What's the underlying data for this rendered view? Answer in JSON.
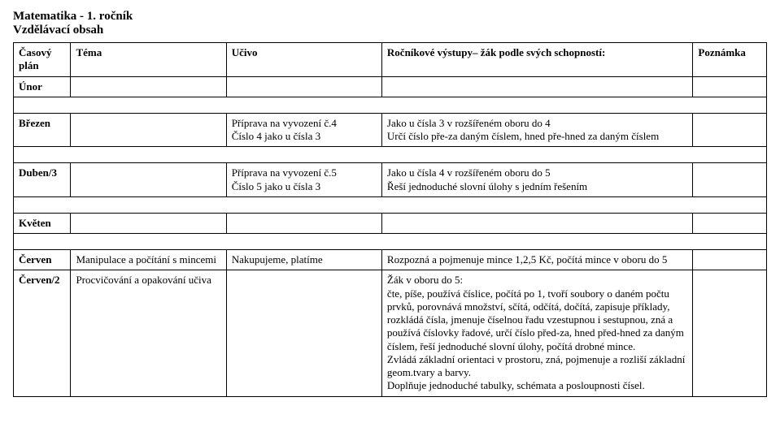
{
  "header": {
    "title": "Matematika  - 1. ročník",
    "subtitle": "Vzdělávací obsah"
  },
  "columns": {
    "plan": "Časový plán",
    "tema": "Téma",
    "ucivo": "Učivo",
    "vystupy": "Ročníkové výstupy– žák podle svých schopností:",
    "poznamka": "Poznámka"
  },
  "rows": {
    "unor": {
      "month": "Únor"
    },
    "brezen": {
      "month": "Březen",
      "ucivo": "Příprava na vyvození č.4\nČíslo 4 jako u čísla 3",
      "vystupy": "Jako u čísla 3 v rozšířeném oboru do 4\nUrčí číslo pře-za daným číslem, hned pře-hned za daným číslem"
    },
    "duben3": {
      "month": "Duben/3",
      "ucivo": "Příprava na vyvození č.5\nČíslo 5 jako u čísla 3",
      "vystupy": "Jako u čísla 4 v rozšířeném oboru do 5\nŘeší jednoduché slovní úlohy s jedním řešením"
    },
    "kveten": {
      "month": "Květen"
    },
    "cerven": {
      "month": "Červen",
      "tema": "Manipulace a počítání s mincemi",
      "ucivo": "Nakupujeme, platíme",
      "vystupy": "Rozpozná a pojmenuje mince 1,2,5 Kč, počítá mince v oboru do 5"
    },
    "cerven2": {
      "month": "Červen/2",
      "tema": "Procvičování a opakování učiva",
      "vystupy": "Žák v oboru do 5:\nčte, píše, používá číslice, počítá po 1, tvoří soubory o daném počtu prvků, porovnává množství, sčítá, odčítá, dočítá, zapisuje příklady, rozkládá čísla, jmenuje číselnou řadu vzestupnou i sestupnou, zná a používá číslovky řadové, určí číslo před-za, hned před-hned za daným číslem, řeší jednoduché slovní úlohy, počítá drobné mince.\nZvládá základní orientaci v prostoru, zná, pojmenuje a rozliší základní geom.tvary a barvy.\nDoplňuje jednoduché tabulky, schémata a posloupnosti čísel."
    }
  }
}
